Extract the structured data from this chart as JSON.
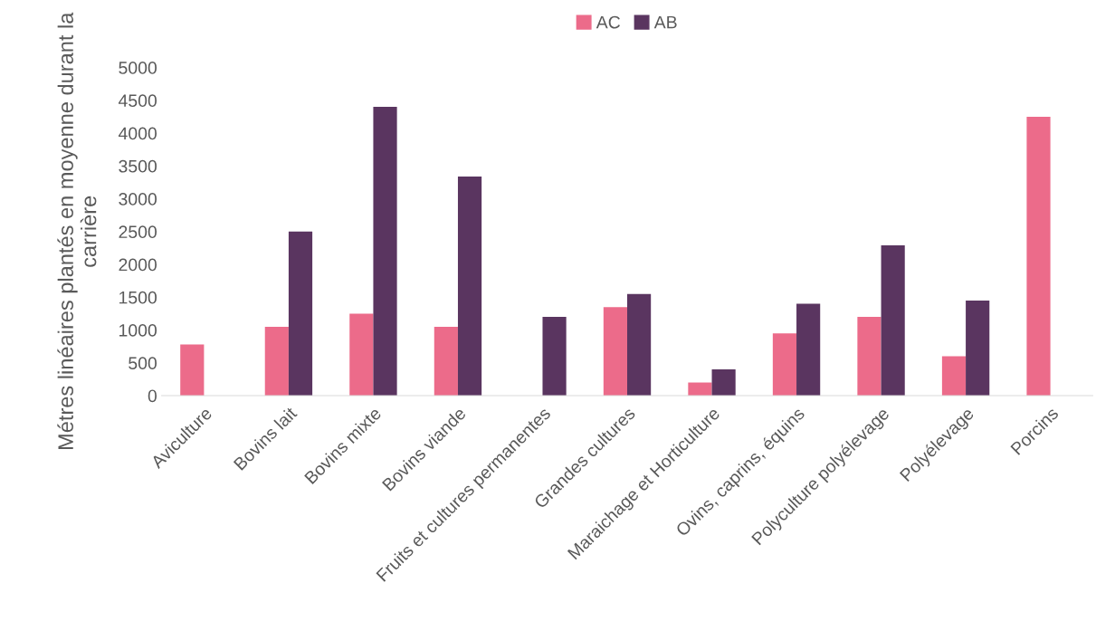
{
  "chart_data": {
    "type": "bar",
    "ylabel": "Métres linéaires plantés en moyenne durant la carrière",
    "categories": [
      "Aviculture",
      "Bovins lait",
      "Bovins mixte",
      "Bovins viande",
      "Fruits et cultures permanentes",
      "Grandes cultures",
      "Maraichage et Horticulture",
      "Ovins, caprins, équins",
      "Polyculture polyélevage",
      "Polyélevage",
      "Porcins"
    ],
    "series": [
      {
        "name": "AC",
        "color": "#ec6b8a",
        "values": [
          780,
          1050,
          1250,
          1050,
          null,
          1350,
          200,
          950,
          1200,
          600,
          4250
        ]
      },
      {
        "name": "AB",
        "color": "#5a3560",
        "values": [
          null,
          2500,
          4400,
          3340,
          1200,
          1550,
          400,
          1400,
          2290,
          1450,
          null
        ]
      }
    ],
    "ylim": [
      0,
      5000
    ],
    "yticks": [
      0,
      500,
      1000,
      1500,
      2000,
      2500,
      3000,
      3500,
      4000,
      4500,
      5000
    ],
    "grid": false,
    "legend": "top"
  }
}
